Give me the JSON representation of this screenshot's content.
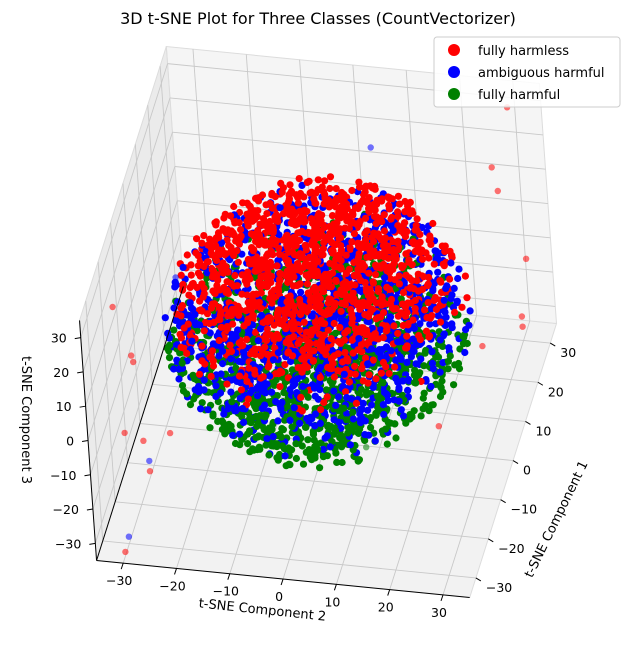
{
  "chart_data": {
    "type": "scatter",
    "projection": "3d",
    "title": "3D t-SNE Plot for Three Classes (CountVectorizer)",
    "xlabel": "t-SNE Component 1",
    "ylabel": "t-SNE Component 2",
    "zlabel": "t-SNE Component 3",
    "xlim": [
      -35,
      35
    ],
    "ylim": [
      -35,
      35
    ],
    "zlim": [
      -35,
      35
    ],
    "x_ticks": [
      -30,
      -20,
      -10,
      0,
      10,
      20,
      30
    ],
    "y_ticks": [
      -30,
      -20,
      -10,
      0,
      10,
      20,
      30
    ],
    "z_ticks": [
      -30,
      -20,
      -10,
      0,
      10,
      20,
      30
    ],
    "grid": true,
    "legend_position": "top-right",
    "series": [
      {
        "name": "fully harmless",
        "color": "#ff0000",
        "cluster": {
          "region": "top cap of sphere",
          "radius": 28,
          "count": 1300
        },
        "outliers": [
          [
            -30,
            -30,
            34
          ],
          [
            30,
            30,
            33
          ],
          [
            20,
            30,
            20
          ],
          [
            24,
            28,
            22
          ],
          [
            -34,
            -26,
            25
          ],
          [
            -33,
            -26,
            22
          ],
          [
            -28,
            -30,
            -5
          ],
          [
            -20,
            -28,
            -25
          ],
          [
            -16,
            -30,
            -21
          ],
          [
            -5,
            -28,
            -31
          ],
          [
            -33,
            -30,
            -34
          ],
          [
            5,
            20,
            -33
          ],
          [
            20,
            25,
            -26
          ],
          [
            30,
            30,
            -28
          ],
          [
            30,
            30,
            -31
          ],
          [
            25,
            33,
            -5
          ]
        ]
      },
      {
        "name": "ambiguous harmful",
        "color": "#0000ff",
        "cluster": {
          "region": "middle band of sphere",
          "radius": 28,
          "count": 1100
        },
        "outliers": [
          [
            -22,
            -20,
            35
          ],
          [
            15,
            8,
            35
          ],
          [
            -20,
            -28,
            -22
          ],
          [
            -30,
            -30,
            -33
          ]
        ]
      },
      {
        "name": "fully harmful",
        "color": "#008000",
        "cluster": {
          "region": "lower half of sphere",
          "radius": 28,
          "count": 1300
        },
        "outliers": [
          [
            -2,
            8,
            -33
          ]
        ]
      }
    ]
  }
}
